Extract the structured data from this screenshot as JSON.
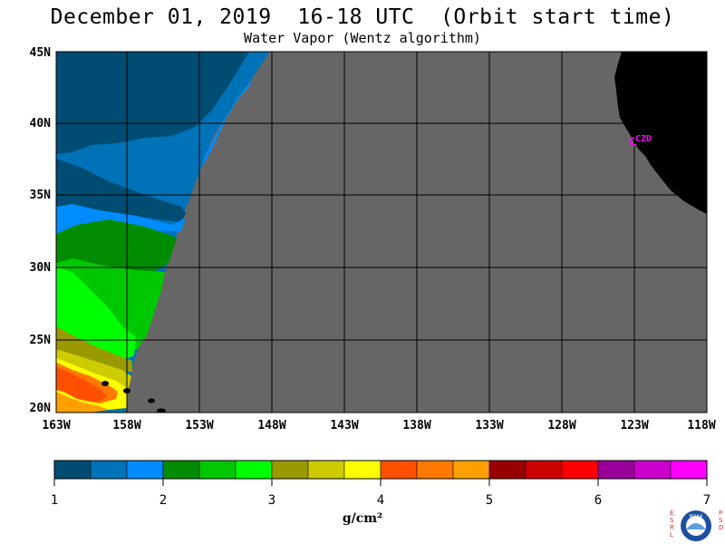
{
  "title": "December 01, 2019  16-18 UTC  (Orbit start time)",
  "subtitle": "Water Vapor (Wentz algorithm)",
  "station_label": "CZD",
  "lat_labels": [
    "45N",
    "40N",
    "35N",
    "30N",
    "25N",
    "20N"
  ],
  "lon_labels": [
    "163W",
    "158W",
    "153W",
    "148W",
    "143W",
    "138W",
    "133W",
    "128W",
    "123W",
    "118W"
  ],
  "colorbar": {
    "colors": [
      "#004c73",
      "#0072b8",
      "#008cff",
      "#008c00",
      "#00c800",
      "#00ff00",
      "#999900",
      "#cccc00",
      "#ffff00",
      "#ff5000",
      "#ff7800",
      "#ffa000",
      "#990000",
      "#cc0000",
      "#ff0000",
      "#990099",
      "#cc00cc",
      "#ff00ff"
    ],
    "tick_labels": [
      "1",
      "2",
      "3",
      "4",
      "5",
      "6",
      "7"
    ],
    "units": "g/cm²"
  },
  "colors": {
    "no_data": "#666666",
    "land": "#000000",
    "grid": "#000000",
    "station": "#ff00ff"
  },
  "logo_side_left": "ESRL",
  "logo_side_right": "PSD",
  "logo_text": "NOAA"
}
